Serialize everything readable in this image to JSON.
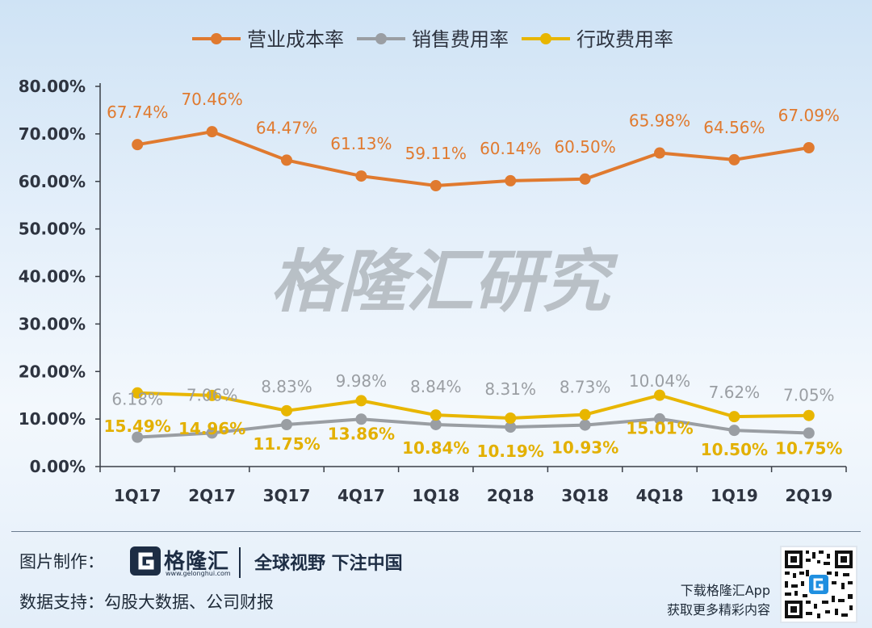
{
  "chart_data": {
    "type": "line",
    "categories": [
      "1Q17",
      "2Q17",
      "3Q17",
      "4Q17",
      "1Q18",
      "2Q18",
      "3Q18",
      "4Q18",
      "1Q19",
      "2Q19"
    ],
    "ylim": [
      0,
      80
    ],
    "yticks": [
      "0.00%",
      "10.00%",
      "20.00%",
      "30.00%",
      "40.00%",
      "50.00%",
      "60.00%",
      "70.00%",
      "80.00%"
    ],
    "legend_position": "top",
    "grid": false,
    "series": [
      {
        "name": "营业成本率",
        "color": "#e07a2f",
        "values": [
          67.74,
          70.46,
          64.47,
          61.13,
          59.11,
          60.14,
          60.5,
          65.98,
          64.56,
          67.09
        ],
        "labels": [
          "67.74%",
          "70.46%",
          "64.47%",
          "61.13%",
          "59.11%",
          "60.14%",
          "60.50%",
          "65.98%",
          "64.56%",
          "67.09%"
        ]
      },
      {
        "name": "销售费用率",
        "color": "#9a9ea3",
        "values": [
          6.18,
          7.06,
          8.83,
          9.98,
          8.84,
          8.31,
          8.73,
          10.04,
          7.62,
          7.05
        ],
        "labels": [
          "6.18%",
          "7.06%",
          "8.83%",
          "9.98%",
          "8.84%",
          "8.31%",
          "8.73%",
          "10.04%",
          "7.62%",
          "7.05%"
        ]
      },
      {
        "name": "行政费用率",
        "color": "#e8b600",
        "values": [
          15.49,
          14.96,
          11.75,
          13.86,
          10.84,
          10.19,
          10.93,
          15.01,
          10.5,
          10.75
        ],
        "labels": [
          "15.49%",
          "14.96%",
          "11.75%",
          "13.86%",
          "10.84%",
          "10.19%",
          "10.93%",
          "15.01%",
          "10.50%",
          "10.75%"
        ]
      }
    ],
    "watermark": "格隆汇研究"
  },
  "footer": {
    "credit_label": "图片制作：",
    "brand_name": "格隆汇",
    "brand_url": "www.gelonghui.com",
    "slogan": "全球视野 下注中国",
    "data_label": "数据支持：勾股大数据、公司财报",
    "app_line1": "下载格隆汇App",
    "app_line2": "获取更多精彩内容"
  }
}
